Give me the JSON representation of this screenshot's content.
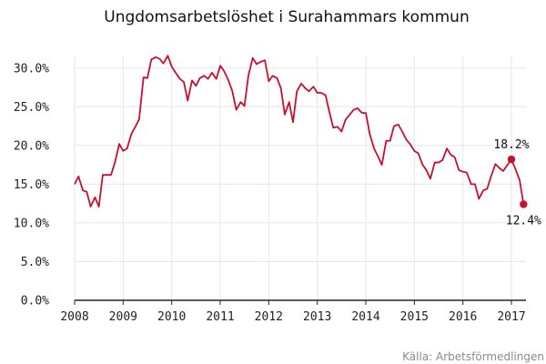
{
  "source": "Källa: Arbetsförmedlingen",
  "colors": {
    "series": "#c8102e",
    "grid": "#e6e6e6",
    "baseline": "#222222"
  },
  "chart_data": {
    "type": "line",
    "title": "Ungdomsarbetslöshet i Surahammars kommun",
    "xlabel": "",
    "ylabel": "",
    "xlim": [
      2008.0,
      2017.3
    ],
    "ylim": [
      0,
      0.315
    ],
    "grid": true,
    "legend": "none",
    "x_ticks": [
      {
        "value": 2008,
        "label": "2008"
      },
      {
        "value": 2009,
        "label": "2009"
      },
      {
        "value": 2010,
        "label": "2010"
      },
      {
        "value": 2011,
        "label": "2011"
      },
      {
        "value": 2012,
        "label": "2012"
      },
      {
        "value": 2013,
        "label": "2013"
      },
      {
        "value": 2014,
        "label": "2014"
      },
      {
        "value": 2015,
        "label": "2015"
      },
      {
        "value": 2016,
        "label": "2016"
      },
      {
        "value": 2017,
        "label": "2017"
      }
    ],
    "y_ticks": [
      {
        "value": 0.0,
        "label": "0.0%"
      },
      {
        "value": 0.05,
        "label": "5.0%"
      },
      {
        "value": 0.1,
        "label": "10.0%"
      },
      {
        "value": 0.15,
        "label": "15.0%"
      },
      {
        "value": 0.2,
        "label": "20.0%"
      },
      {
        "value": 0.25,
        "label": "25.0%"
      },
      {
        "value": 0.3,
        "label": "30.0%"
      }
    ],
    "series": [
      {
        "points": [
          [
            2008.0,
            0.15
          ],
          [
            2008.08,
            0.16
          ],
          [
            2008.17,
            0.142
          ],
          [
            2008.25,
            0.14
          ],
          [
            2008.33,
            0.121
          ],
          [
            2008.42,
            0.133
          ],
          [
            2008.5,
            0.121
          ],
          [
            2008.58,
            0.162
          ],
          [
            2008.67,
            0.162
          ],
          [
            2008.75,
            0.162
          ],
          [
            2008.83,
            0.178
          ],
          [
            2008.92,
            0.202
          ],
          [
            2009.0,
            0.193
          ],
          [
            2009.08,
            0.196
          ],
          [
            2009.17,
            0.215
          ],
          [
            2009.25,
            0.224
          ],
          [
            2009.33,
            0.234
          ],
          [
            2009.42,
            0.288
          ],
          [
            2009.5,
            0.287
          ],
          [
            2009.58,
            0.311
          ],
          [
            2009.67,
            0.314
          ],
          [
            2009.75,
            0.312
          ],
          [
            2009.83,
            0.306
          ],
          [
            2009.92,
            0.316
          ],
          [
            2010.0,
            0.302
          ],
          [
            2010.08,
            0.294
          ],
          [
            2010.17,
            0.286
          ],
          [
            2010.25,
            0.282
          ],
          [
            2010.33,
            0.258
          ],
          [
            2010.42,
            0.284
          ],
          [
            2010.5,
            0.277
          ],
          [
            2010.58,
            0.287
          ],
          [
            2010.67,
            0.29
          ],
          [
            2010.75,
            0.286
          ],
          [
            2010.83,
            0.294
          ],
          [
            2010.92,
            0.286
          ],
          [
            2011.0,
            0.303
          ],
          [
            2011.08,
            0.296
          ],
          [
            2011.17,
            0.284
          ],
          [
            2011.25,
            0.27
          ],
          [
            2011.33,
            0.246
          ],
          [
            2011.42,
            0.256
          ],
          [
            2011.5,
            0.251
          ],
          [
            2011.58,
            0.29
          ],
          [
            2011.67,
            0.313
          ],
          [
            2011.75,
            0.305
          ],
          [
            2011.83,
            0.308
          ],
          [
            2011.92,
            0.31
          ],
          [
            2012.0,
            0.283
          ],
          [
            2012.08,
            0.29
          ],
          [
            2012.17,
            0.287
          ],
          [
            2012.25,
            0.274
          ],
          [
            2012.33,
            0.24
          ],
          [
            2012.42,
            0.256
          ],
          [
            2012.5,
            0.23
          ],
          [
            2012.58,
            0.27
          ],
          [
            2012.67,
            0.28
          ],
          [
            2012.75,
            0.274
          ],
          [
            2012.83,
            0.27
          ],
          [
            2012.92,
            0.276
          ],
          [
            2013.0,
            0.268
          ],
          [
            2013.08,
            0.268
          ],
          [
            2013.17,
            0.265
          ],
          [
            2013.25,
            0.243
          ],
          [
            2013.33,
            0.223
          ],
          [
            2013.42,
            0.224
          ],
          [
            2013.5,
            0.218
          ],
          [
            2013.58,
            0.233
          ],
          [
            2013.67,
            0.24
          ],
          [
            2013.75,
            0.246
          ],
          [
            2013.83,
            0.248
          ],
          [
            2013.92,
            0.242
          ],
          [
            2014.0,
            0.242
          ],
          [
            2014.08,
            0.215
          ],
          [
            2014.17,
            0.196
          ],
          [
            2014.25,
            0.186
          ],
          [
            2014.33,
            0.175
          ],
          [
            2014.42,
            0.206
          ],
          [
            2014.5,
            0.206
          ],
          [
            2014.58,
            0.225
          ],
          [
            2014.67,
            0.227
          ],
          [
            2014.75,
            0.218
          ],
          [
            2014.83,
            0.208
          ],
          [
            2014.92,
            0.201
          ],
          [
            2015.0,
            0.193
          ],
          [
            2015.08,
            0.19
          ],
          [
            2015.17,
            0.175
          ],
          [
            2015.25,
            0.168
          ],
          [
            2015.33,
            0.157
          ],
          [
            2015.42,
            0.178
          ],
          [
            2015.5,
            0.178
          ],
          [
            2015.58,
            0.181
          ],
          [
            2015.67,
            0.196
          ],
          [
            2015.75,
            0.188
          ],
          [
            2015.83,
            0.185
          ],
          [
            2015.92,
            0.168
          ],
          [
            2016.0,
            0.166
          ],
          [
            2016.08,
            0.165
          ],
          [
            2016.17,
            0.15
          ],
          [
            2016.25,
            0.15
          ],
          [
            2016.33,
            0.131
          ],
          [
            2016.42,
            0.142
          ],
          [
            2016.5,
            0.144
          ],
          [
            2016.58,
            0.16
          ],
          [
            2016.67,
            0.176
          ],
          [
            2016.75,
            0.171
          ],
          [
            2016.83,
            0.167
          ],
          [
            2016.92,
            0.175
          ],
          [
            2017.0,
            0.182
          ],
          [
            2017.08,
            0.17
          ],
          [
            2017.17,
            0.155
          ],
          [
            2017.25,
            0.124
          ]
        ]
      }
    ],
    "annotations": [
      {
        "x": 2017.0,
        "y": 0.182,
        "label": "18.2%",
        "position": "above"
      },
      {
        "x": 2017.25,
        "y": 0.124,
        "label": "12.4%",
        "position": "below"
      }
    ]
  }
}
